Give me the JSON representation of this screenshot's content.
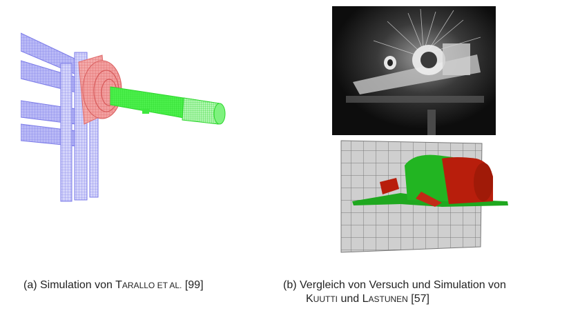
{
  "captions": {
    "a": {
      "prefix": "(a) Simulation von ",
      "author1_initial": "T",
      "author1_rest": "ARALLO ET AL.",
      "ref": " [99]"
    },
    "b": {
      "prefix": "(b) Vergleich von Versuch und Simulation von",
      "author1_initial": "K",
      "author1_rest": "UUTTI",
      "joiner": " und ",
      "author2_initial": "L",
      "author2_rest": "ASTUNEN",
      "ref": " [57]"
    }
  },
  "colors": {
    "frame_blue": "#7a7ae8",
    "flange_red": "#e87878",
    "tube_green": "#3ee83e",
    "panel_gray": "#c8c8c8",
    "sim_green": "#1fa81f",
    "sim_red": "#b81e0c"
  }
}
